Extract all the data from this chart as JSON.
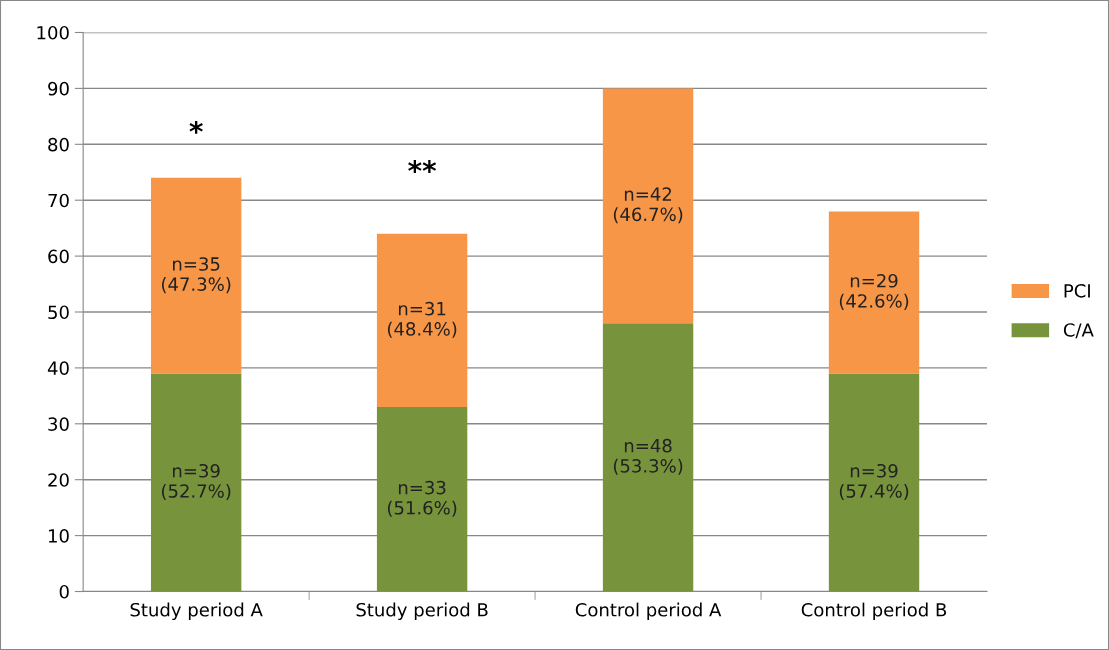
{
  "chart_data": {
    "type": "bar",
    "stacked": true,
    "categories": [
      "Study period A",
      "Study period B",
      "Control period A",
      "Control period B"
    ],
    "series": [
      {
        "name": "C/A",
        "color": "#77933c",
        "values": [
          39,
          33,
          48,
          39
        ],
        "value_labels": [
          "n=39\n(52.7%)",
          "n=33\n(51.6%)",
          "n=48\n(53.3%)",
          "n=39\n(57.4%)"
        ]
      },
      {
        "name": "PCI",
        "color": "#f79646",
        "values": [
          35,
          31,
          42,
          29
        ],
        "value_labels": [
          "n=35\n(47.3%)",
          "n=31\n(48.4%)",
          "n=42\n(46.7%)",
          "n=29\n(42.6%)"
        ]
      }
    ],
    "ylim": [
      0,
      100
    ],
    "yticks": [
      0,
      10,
      20,
      30,
      40,
      50,
      60,
      70,
      80,
      90,
      100
    ],
    "grid": "y",
    "legend": "right",
    "annotations": [
      "*",
      "**"
    ]
  }
}
